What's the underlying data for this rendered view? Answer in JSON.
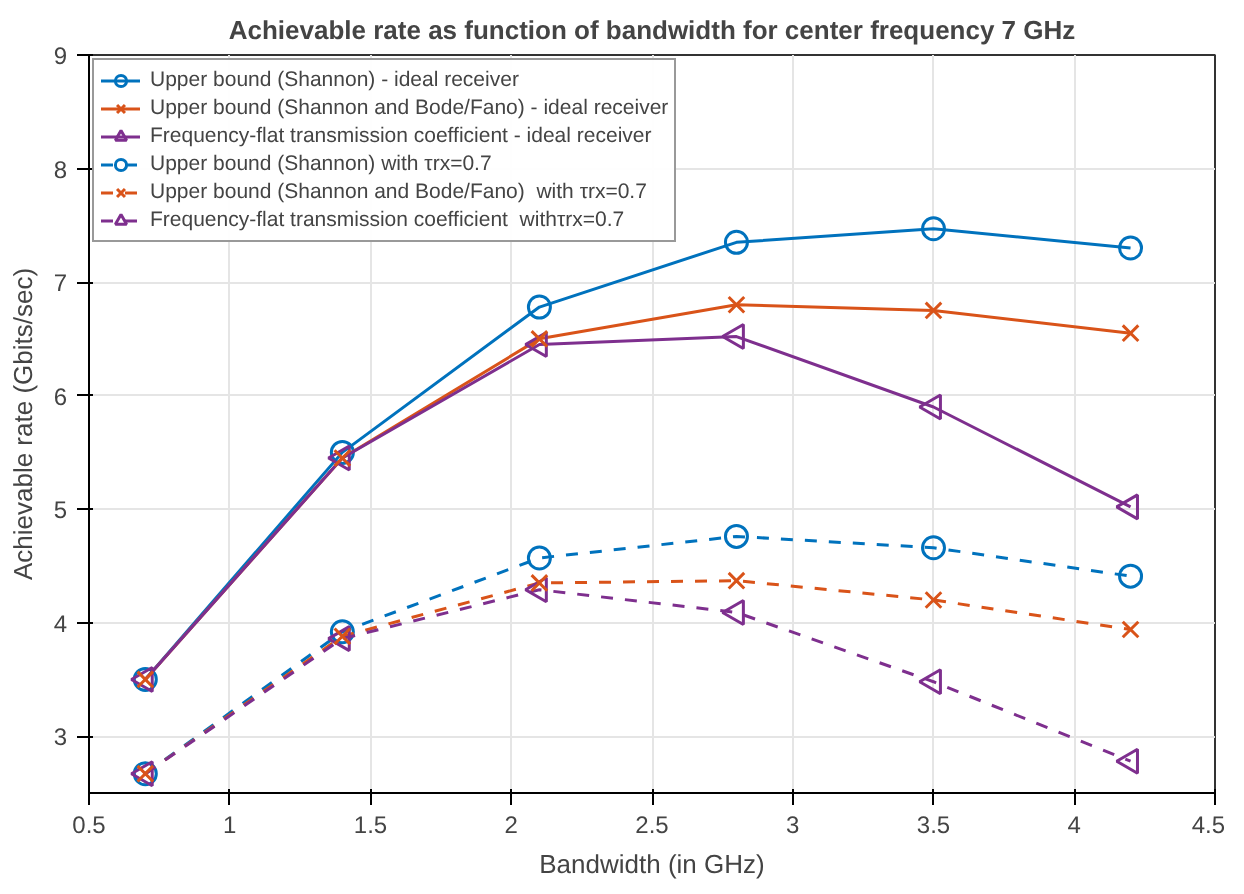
{
  "chart_data": {
    "type": "line",
    "title": "Achievable rate as function of bandwidth for center frequency 7 GHz",
    "xlabel": "Bandwidth (in GHz)",
    "ylabel": "Achievable rate (Gbits/sec)",
    "x": [
      0.7,
      1.4,
      2.1,
      2.8,
      3.5,
      4.2
    ],
    "xlim": [
      0.5,
      4.5
    ],
    "xticks": [
      0.5,
      1,
      1.5,
      2,
      2.5,
      3,
      3.5,
      4,
      4.5
    ],
    "ylim": [
      2.5,
      9
    ],
    "yticks": [
      3,
      4,
      5,
      6,
      7,
      8,
      9
    ],
    "grid": true,
    "legend": "top left",
    "series": [
      {
        "name": "Upper bound (Shannon) - ideal receiver",
        "color": "#0072bd",
        "marker": "circle",
        "line_style": "solid",
        "values": [
          3.5,
          5.5,
          6.78,
          7.35,
          7.47,
          7.3
        ]
      },
      {
        "name": "Upper bound (Shannon and Bode/Fano) - ideal receiver",
        "color": "#d95319",
        "marker": "cross",
        "line_style": "solid",
        "values": [
          3.5,
          5.45,
          6.5,
          6.8,
          6.75,
          6.55
        ]
      },
      {
        "name": "Frequency-flat transmission coefficient - ideal receiver",
        "color": "#7e2f8e",
        "marker": "triangle",
        "line_style": "solid",
        "values": [
          3.5,
          5.45,
          6.45,
          6.52,
          5.9,
          5.02
        ]
      },
      {
        "name": "Upper bound (Shannon) with τrx=0.7",
        "color": "#0072bd",
        "marker": "circle",
        "line_style": "dashed",
        "values": [
          2.67,
          3.92,
          4.57,
          4.76,
          4.66,
          4.41
        ]
      },
      {
        "name": "Upper bound (Shannon and Bode/Fano)  with τrx=0.7",
        "color": "#d95319",
        "marker": "cross",
        "line_style": "dashed",
        "values": [
          2.67,
          3.88,
          4.35,
          4.37,
          4.2,
          3.94
        ]
      },
      {
        "name": "Frequency-flat transmission coefficient  withτrx=0.7",
        "color": "#7e2f8e",
        "marker": "triangle",
        "line_style": "dashed",
        "values": [
          2.67,
          3.86,
          4.29,
          4.09,
          3.48,
          2.78
        ]
      }
    ]
  }
}
